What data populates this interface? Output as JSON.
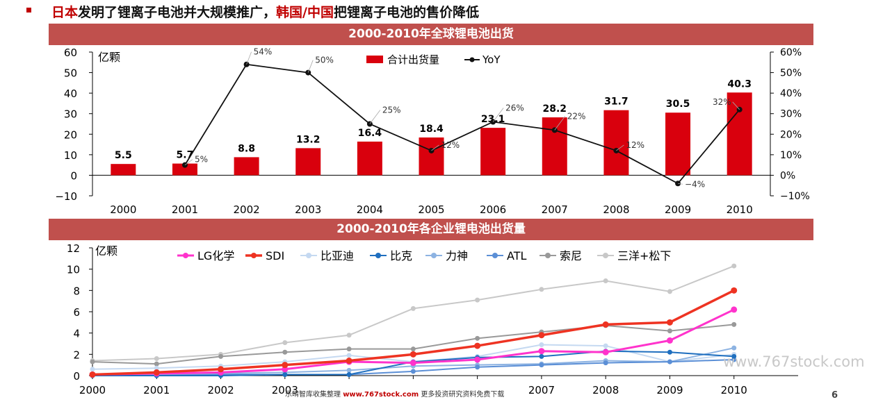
{
  "headline": {
    "part1": "日本",
    "part2": "发明了锂离子电池并大规模推广，",
    "part3": "韩国/中国",
    "part4": "把锂离子电池的售价降低"
  },
  "chart_data": [
    {
      "type": "bar",
      "title": "2000-2010年全球锂电池出货",
      "ylabel": "亿颗",
      "categories": [
        "2000",
        "2001",
        "2002",
        "2003",
        "2004",
        "2005",
        "2006",
        "2007",
        "2008",
        "2009",
        "2010"
      ],
      "series": [
        {
          "name": "合计出货量",
          "values": [
            5.5,
            5.7,
            8.8,
            13.2,
            16.4,
            18.4,
            23.1,
            28.2,
            31.7,
            30.5,
            40.3
          ],
          "color": "#d9000d",
          "axis": "left"
        },
        {
          "name": "YoY",
          "type": "line",
          "values": [
            null,
            5,
            54,
            50,
            25,
            12,
            26,
            22,
            12,
            -4,
            32
          ],
          "color": "#111111",
          "axis": "right"
        }
      ],
      "value_labels": [
        "5.5",
        "5.7",
        "8.8",
        "13.2",
        "16.4",
        "18.4",
        "23.1",
        "28.2",
        "31.7",
        "30.5",
        "40.3"
      ],
      "yoy_labels": [
        "",
        "5%",
        "54%",
        "50%",
        "25%",
        "12%",
        "26%",
        "22%",
        "12%",
        "−4%",
        "32%"
      ],
      "ylim": [
        -10,
        60
      ],
      "y2lim": [
        -10,
        60
      ],
      "yticks": [
        "60",
        "50",
        "40",
        "30",
        "20",
        "10",
        "0",
        "−10"
      ],
      "y2ticks": [
        "60%",
        "50%",
        "40%",
        "30%",
        "20%",
        "10%",
        "0%",
        "−10%"
      ],
      "legend": "top-center"
    },
    {
      "type": "line",
      "title": "2000-2010年各企业锂电池出货量",
      "ylabel": "亿颗",
      "x": [
        "2000",
        "2001",
        "2002",
        "2003",
        "2004",
        "2005",
        "2006",
        "2007",
        "2008",
        "2009",
        "2010"
      ],
      "x_tick_labels": [
        "2000",
        "2001",
        "2002",
        "2003",
        "",
        "",
        "",
        "2007",
        "2008",
        "2009",
        "2010"
      ],
      "yticks": [
        "12",
        "10",
        "8",
        "6",
        "4",
        "2",
        "0"
      ],
      "ylim": [
        0,
        12
      ],
      "legend": "top-center",
      "series": [
        {
          "name": "LG化学",
          "color": "#ff33cc",
          "width": 3,
          "values": [
            0.1,
            0.2,
            0.3,
            0.6,
            1.3,
            1.2,
            1.5,
            2.3,
            2.2,
            3.3,
            6.2
          ]
        },
        {
          "name": "SDI",
          "color": "#ee3322",
          "width": 3.5,
          "values": [
            0.1,
            0.3,
            0.6,
            1.0,
            1.4,
            2.0,
            2.8,
            3.8,
            4.8,
            5.0,
            8.0
          ]
        },
        {
          "name": "比亚迪",
          "color": "#c5d9f1",
          "width": 2,
          "values": [
            0.6,
            0.7,
            0.9,
            1.3,
            1.9,
            1.3,
            1.8,
            2.9,
            2.8,
            1.3,
            2.0
          ]
        },
        {
          "name": "比克",
          "color": "#1f6fbf",
          "width": 2,
          "values": [
            0.0,
            0.0,
            0.0,
            0.1,
            0.1,
            1.3,
            1.7,
            1.8,
            2.3,
            2.2,
            1.8
          ]
        },
        {
          "name": "力神",
          "color": "#8db3e2",
          "width": 2,
          "values": [
            0.1,
            0.1,
            0.2,
            0.3,
            0.5,
            0.9,
            1.0,
            1.1,
            1.4,
            1.3,
            2.6
          ]
        },
        {
          "name": "ATL",
          "color": "#5b8fd6",
          "width": 2,
          "values": [
            0.0,
            0.0,
            0.1,
            0.1,
            0.1,
            0.4,
            0.8,
            1.0,
            1.2,
            1.3,
            1.5
          ]
        },
        {
          "name": "索尼",
          "color": "#999999",
          "width": 2,
          "values": [
            1.3,
            1.1,
            1.8,
            2.2,
            2.5,
            2.5,
            3.5,
            4.1,
            4.7,
            4.2,
            4.8
          ]
        },
        {
          "name": "三洋+松下",
          "color": "#c8c8c8",
          "width": 2,
          "values": [
            1.4,
            1.6,
            2.0,
            3.1,
            3.8,
            6.3,
            7.1,
            8.1,
            8.9,
            7.9,
            10.3
          ]
        }
      ]
    }
  ],
  "footer": {
    "text_before": "乐晴智库收集整理 ",
    "brand": "www.767stock.com",
    "text_after": " 更多投资研究资料免费下载"
  },
  "watermark": "www.767stock.com",
  "page_number": "6"
}
